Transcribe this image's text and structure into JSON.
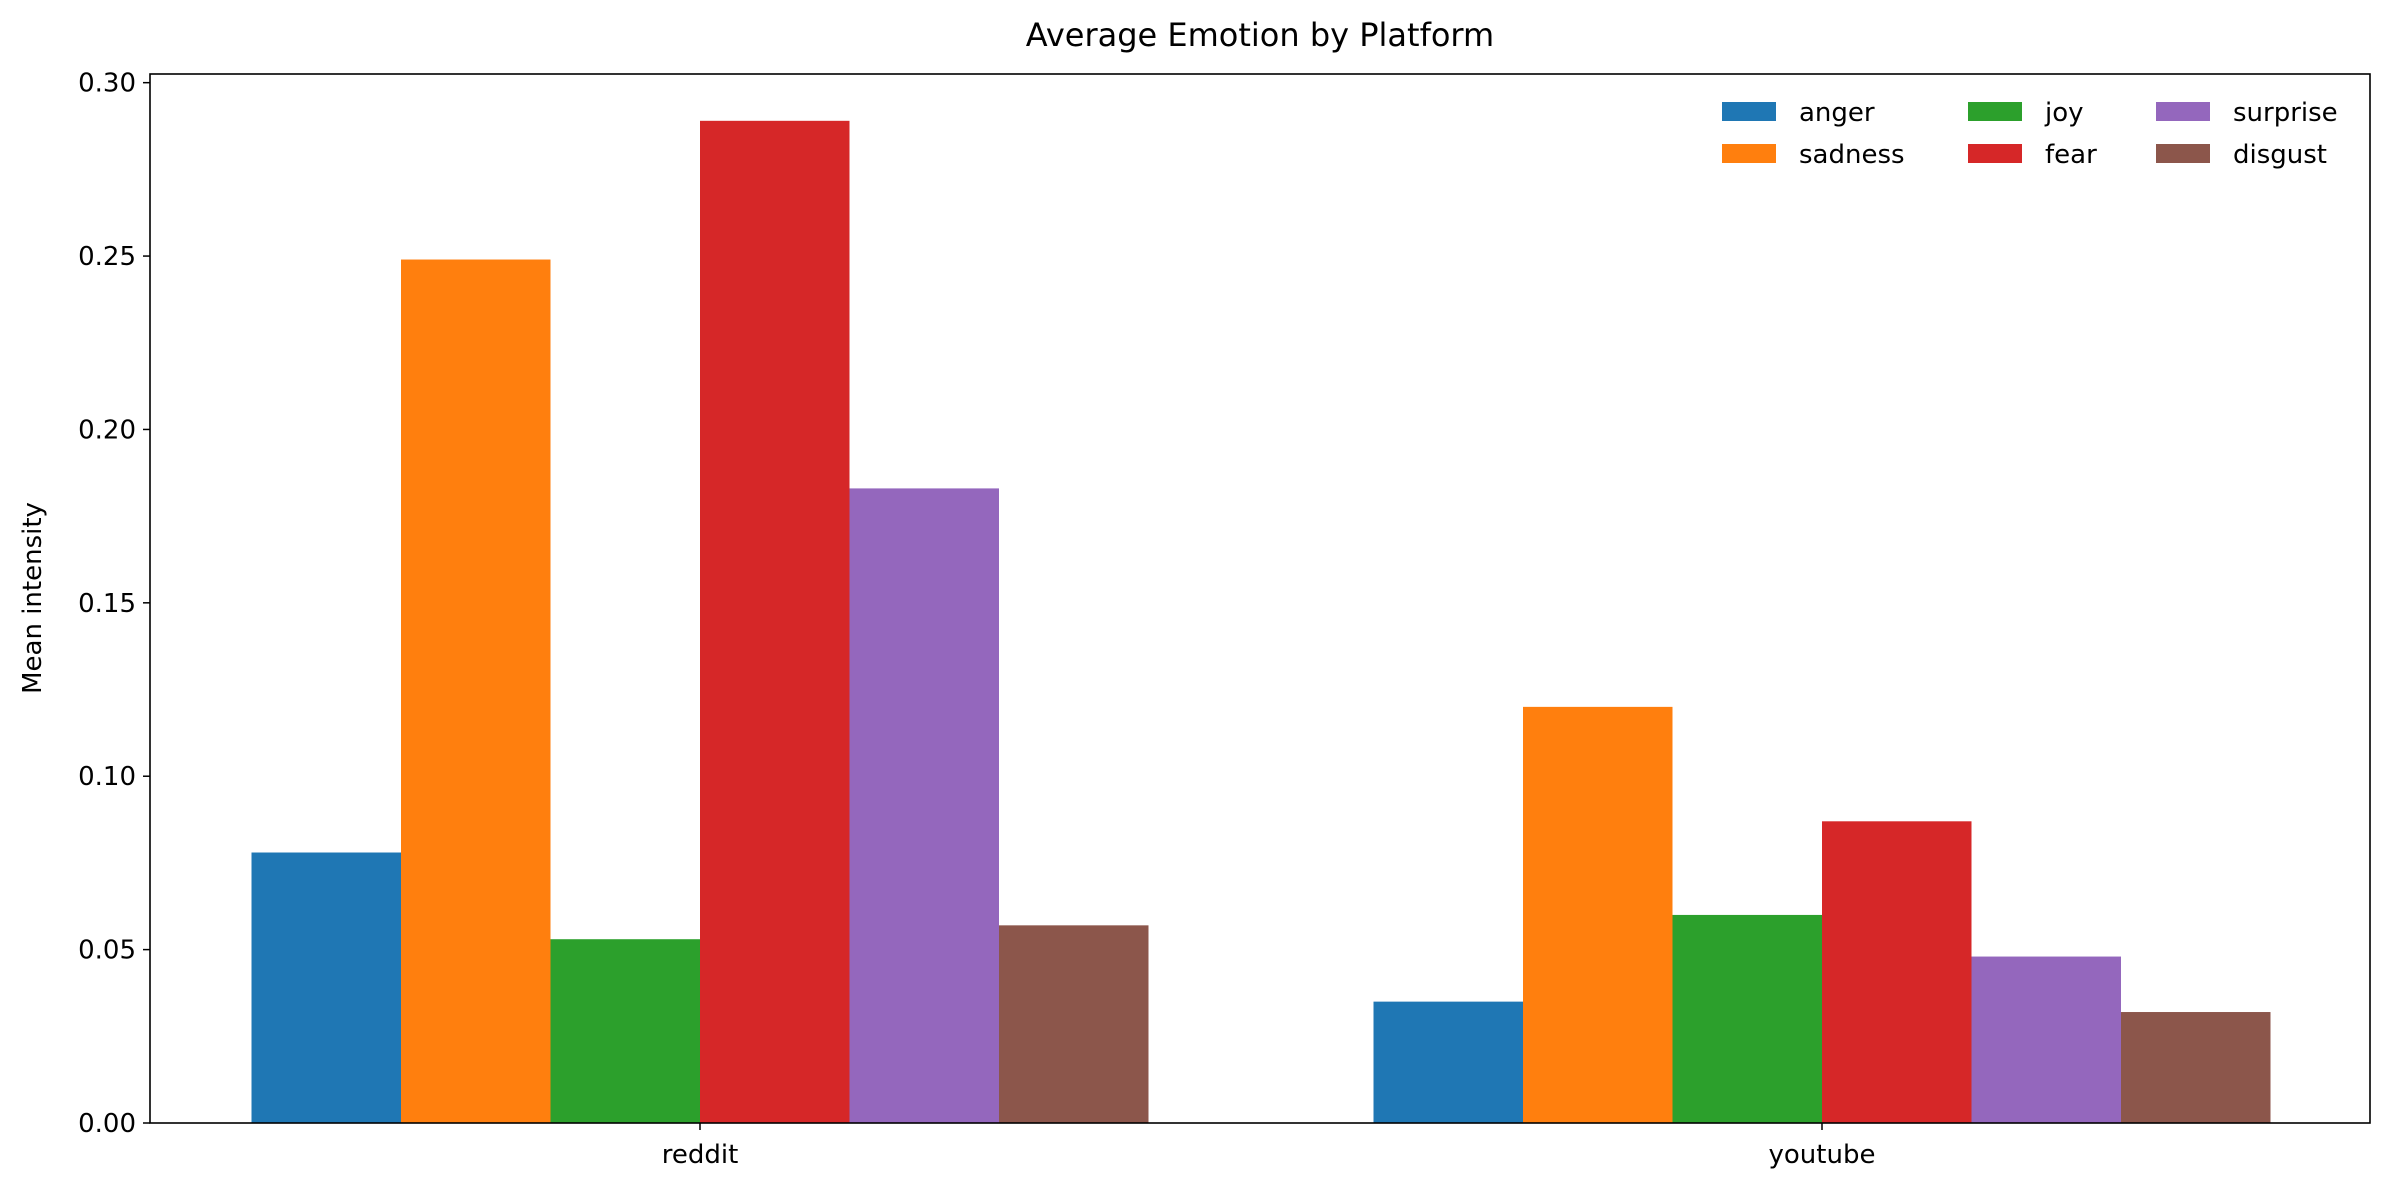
{
  "chart_data": {
    "type": "bar",
    "title": "Average Emotion by Platform",
    "xlabel": "",
    "ylabel": "Mean intensity",
    "categories": [
      "reddit",
      "youtube"
    ],
    "series": [
      {
        "name": "anger",
        "color": "#1f77b4",
        "values": [
          0.078,
          0.035
        ]
      },
      {
        "name": "sadness",
        "color": "#ff7f0e",
        "values": [
          0.249,
          0.12
        ]
      },
      {
        "name": "joy",
        "color": "#2ca02c",
        "values": [
          0.053,
          0.06
        ]
      },
      {
        "name": "fear",
        "color": "#d62728",
        "values": [
          0.289,
          0.087
        ]
      },
      {
        "name": "surprise",
        "color": "#9467bd",
        "values": [
          0.183,
          0.048
        ]
      },
      {
        "name": "disgust",
        "color": "#8c564b",
        "values": [
          0.057,
          0.032
        ]
      }
    ],
    "ylim": [
      0,
      0.3025
    ],
    "yticks": [
      "0.00",
      "0.05",
      "0.10",
      "0.15",
      "0.20",
      "0.25",
      "0.30"
    ],
    "grid": false,
    "legend": {
      "placement": "top-right",
      "columns": 3
    }
  }
}
